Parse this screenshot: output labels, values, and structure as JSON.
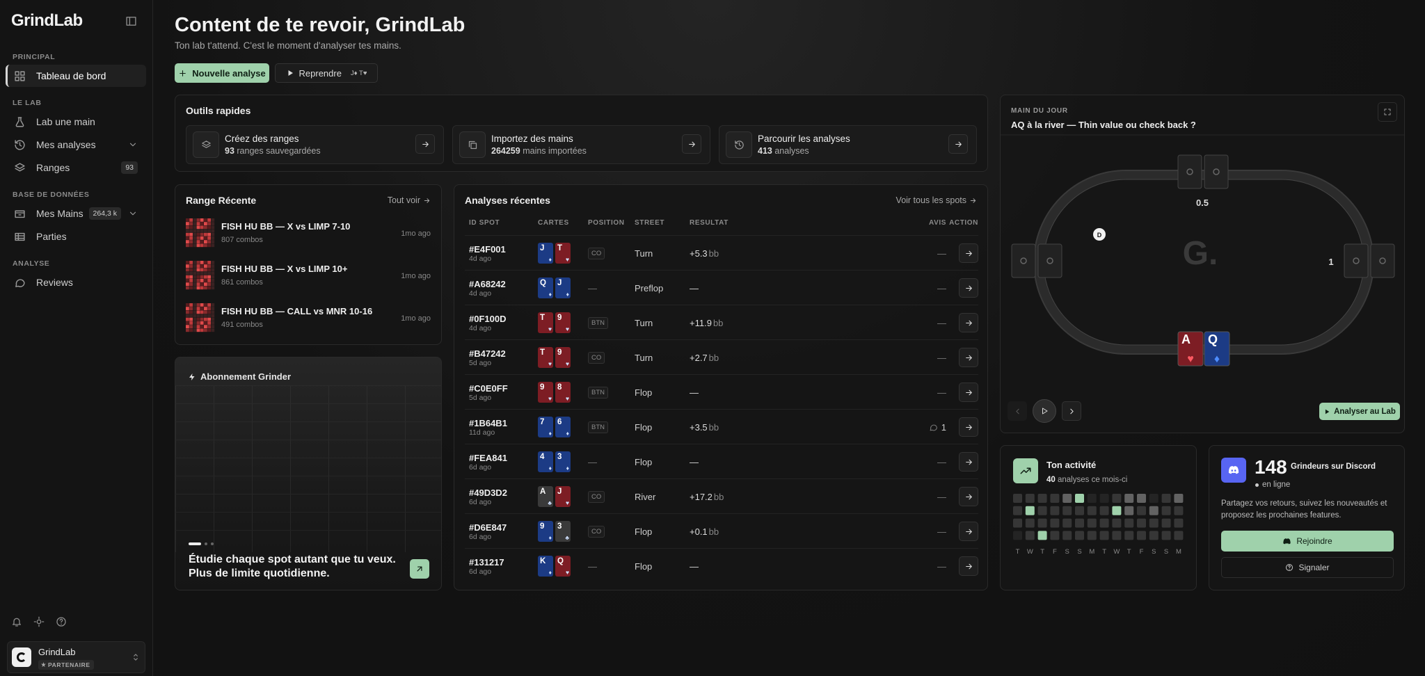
{
  "sidebar": {
    "logo": "GrindLab",
    "sections": [
      {
        "label": "PRINCIPAL",
        "items": [
          {
            "label": "Tableau de bord",
            "active": true
          }
        ]
      },
      {
        "label": "LE LAB",
        "items": [
          {
            "label": "Lab une main"
          },
          {
            "label": "Mes analyses",
            "chevron": true
          },
          {
            "label": "Ranges",
            "badge": "93"
          }
        ]
      },
      {
        "label": "BASE DE DONNÉES",
        "items": [
          {
            "label": "Mes Mains",
            "badge": "264,3 k",
            "chevron": true
          },
          {
            "label": "Parties"
          }
        ]
      },
      {
        "label": "ANALYSE",
        "items": [
          {
            "label": "Reviews"
          }
        ]
      }
    ],
    "user": {
      "name": "GrindLab",
      "role": "PARTENAIRE"
    }
  },
  "header": {
    "title": "Content de te revoir, GrindLab",
    "subtitle": "Ton lab t'attend. C'est le moment d'analyser tes mains.",
    "new_button": "Nouvelle analyse",
    "resume_button": "Reprendre",
    "resume_hand": "J♦ T♥"
  },
  "quick_tools": {
    "title": "Outils rapides",
    "items": [
      {
        "title": "Créez des ranges",
        "count": "93",
        "text": "ranges sauvegardées"
      },
      {
        "title": "Importez des mains",
        "count": "264259",
        "text": "mains importées"
      },
      {
        "title": "Parcourir les analyses",
        "count": "413",
        "text": "analyses"
      }
    ]
  },
  "recent_ranges": {
    "title": "Range Récente",
    "link": "Tout voir",
    "items": [
      {
        "name": "FISH HU BB — X vs LIMP 7-10",
        "combos": "807 combos",
        "ago": "1mo ago"
      },
      {
        "name": "FISH HU BB — X vs LIMP 10+",
        "combos": "861 combos",
        "ago": "1mo ago"
      },
      {
        "name": "FISH HU BB — CALL vs MNR 10-16",
        "combos": "491 combos",
        "ago": "1mo ago"
      }
    ]
  },
  "subscription": {
    "title": "Abonnement Grinder",
    "text": "Étudie chaque spot autant que tu veux. Plus de limite quotidienne."
  },
  "recent_analyses": {
    "title": "Analyses récentes",
    "link": "Voir tous les spots",
    "columns": [
      "ID SPOT",
      "CARTES",
      "POSITION",
      "STREET",
      "RESULTAT",
      "AVIS",
      "ACTION"
    ],
    "rows": [
      {
        "id": "#E4F001",
        "ago": "4d ago",
        "cards": [
          {
            "rank": "J",
            "suit": "♦"
          },
          {
            "rank": "T",
            "suit": "♥"
          }
        ],
        "position": "CO",
        "street": "Turn",
        "result": "+5.3",
        "unit": "bb",
        "avis": "—"
      },
      {
        "id": "#A68242",
        "ago": "4d ago",
        "cards": [
          {
            "rank": "Q",
            "suit": "♦"
          },
          {
            "rank": "J",
            "suit": "♦"
          }
        ],
        "position": "—",
        "street": "Preflop",
        "result": "—",
        "avis": "—"
      },
      {
        "id": "#0F100D",
        "ago": "4d ago",
        "cards": [
          {
            "rank": "T",
            "suit": "♥"
          },
          {
            "rank": "9",
            "suit": "♥"
          }
        ],
        "position": "BTN",
        "street": "Turn",
        "result": "+11.9",
        "unit": "bb",
        "avis": "—"
      },
      {
        "id": "#B47242",
        "ago": "5d ago",
        "cards": [
          {
            "rank": "T",
            "suit": "♥"
          },
          {
            "rank": "9",
            "suit": "♥"
          }
        ],
        "position": "CO",
        "street": "Turn",
        "result": "+2.7",
        "unit": "bb",
        "avis": "—"
      },
      {
        "id": "#C0E0FF",
        "ago": "5d ago",
        "cards": [
          {
            "rank": "9",
            "suit": "♥"
          },
          {
            "rank": "8",
            "suit": "♥"
          }
        ],
        "position": "BTN",
        "street": "Flop",
        "result": "—",
        "avis": "—"
      },
      {
        "id": "#1B64B1",
        "ago": "11d ago",
        "cards": [
          {
            "rank": "7",
            "suit": "♦"
          },
          {
            "rank": "6",
            "suit": "♦"
          }
        ],
        "position": "BTN",
        "street": "Flop",
        "result": "+3.5",
        "unit": "bb",
        "avis": "1"
      },
      {
        "id": "#FEA841",
        "ago": "6d ago",
        "cards": [
          {
            "rank": "4",
            "suit": "♦"
          },
          {
            "rank": "3",
            "suit": "♦"
          }
        ],
        "position": "—",
        "street": "Flop",
        "result": "—",
        "avis": "—"
      },
      {
        "id": "#49D3D2",
        "ago": "6d ago",
        "cards": [
          {
            "rank": "A",
            "suit": "♣"
          },
          {
            "rank": "J",
            "suit": "♥"
          }
        ],
        "position": "CO",
        "street": "River",
        "result": "+17.2",
        "unit": "bb",
        "avis": "—"
      },
      {
        "id": "#D6E847",
        "ago": "6d ago",
        "cards": [
          {
            "rank": "9",
            "suit": "♦"
          },
          {
            "rank": "3",
            "suit": "♣"
          }
        ],
        "position": "CO",
        "street": "Flop",
        "result": "+0.1",
        "unit": "bb",
        "avis": "—"
      },
      {
        "id": "#131217",
        "ago": "6d ago",
        "cards": [
          {
            "rank": "K",
            "suit": "♦"
          },
          {
            "rank": "Q",
            "suit": "♥"
          }
        ],
        "position": "—",
        "street": "Flop",
        "result": "—",
        "avis": "—"
      }
    ]
  },
  "hand_of_day": {
    "label": "MAIN DU JOUR",
    "title": "AQ à la river — Thin value ou check back ?",
    "table_logo": "G.",
    "bets": [
      "0.5",
      "1"
    ],
    "dealer": "D",
    "hero": [
      {
        "rank": "A",
        "suit": "♥"
      },
      {
        "rank": "Q",
        "suit": "♦"
      }
    ],
    "button": "Analyser au Lab"
  },
  "activity": {
    "title": "Ton activité",
    "count": "40",
    "count_text": "analyses ce mois-ci",
    "days": [
      "T",
      "W",
      "T",
      "F",
      "S",
      "S",
      "M",
      "T",
      "W",
      "T",
      "F",
      "S",
      "S",
      "M"
    ],
    "levels": [
      [
        1,
        1,
        1,
        1,
        2,
        3,
        0,
        0,
        1,
        2,
        2,
        0,
        1,
        2
      ],
      [
        1,
        3,
        1,
        1,
        1,
        1,
        1,
        1,
        3,
        2,
        1,
        2,
        1,
        1
      ],
      [
        1,
        1,
        1,
        1,
        1,
        1,
        1,
        1,
        1,
        1,
        1,
        1,
        1,
        1
      ],
      [
        0,
        1,
        3,
        1,
        1,
        1,
        1,
        1,
        1,
        1,
        1,
        1,
        1,
        1
      ]
    ]
  },
  "discord": {
    "count": "148",
    "title": "Grindeurs sur Discord",
    "status": "en ligne",
    "text": "Partagez vos retours, suivez les nouveautés et proposez les prochaines features.",
    "join": "Rejoindre",
    "report": "Signaler"
  }
}
